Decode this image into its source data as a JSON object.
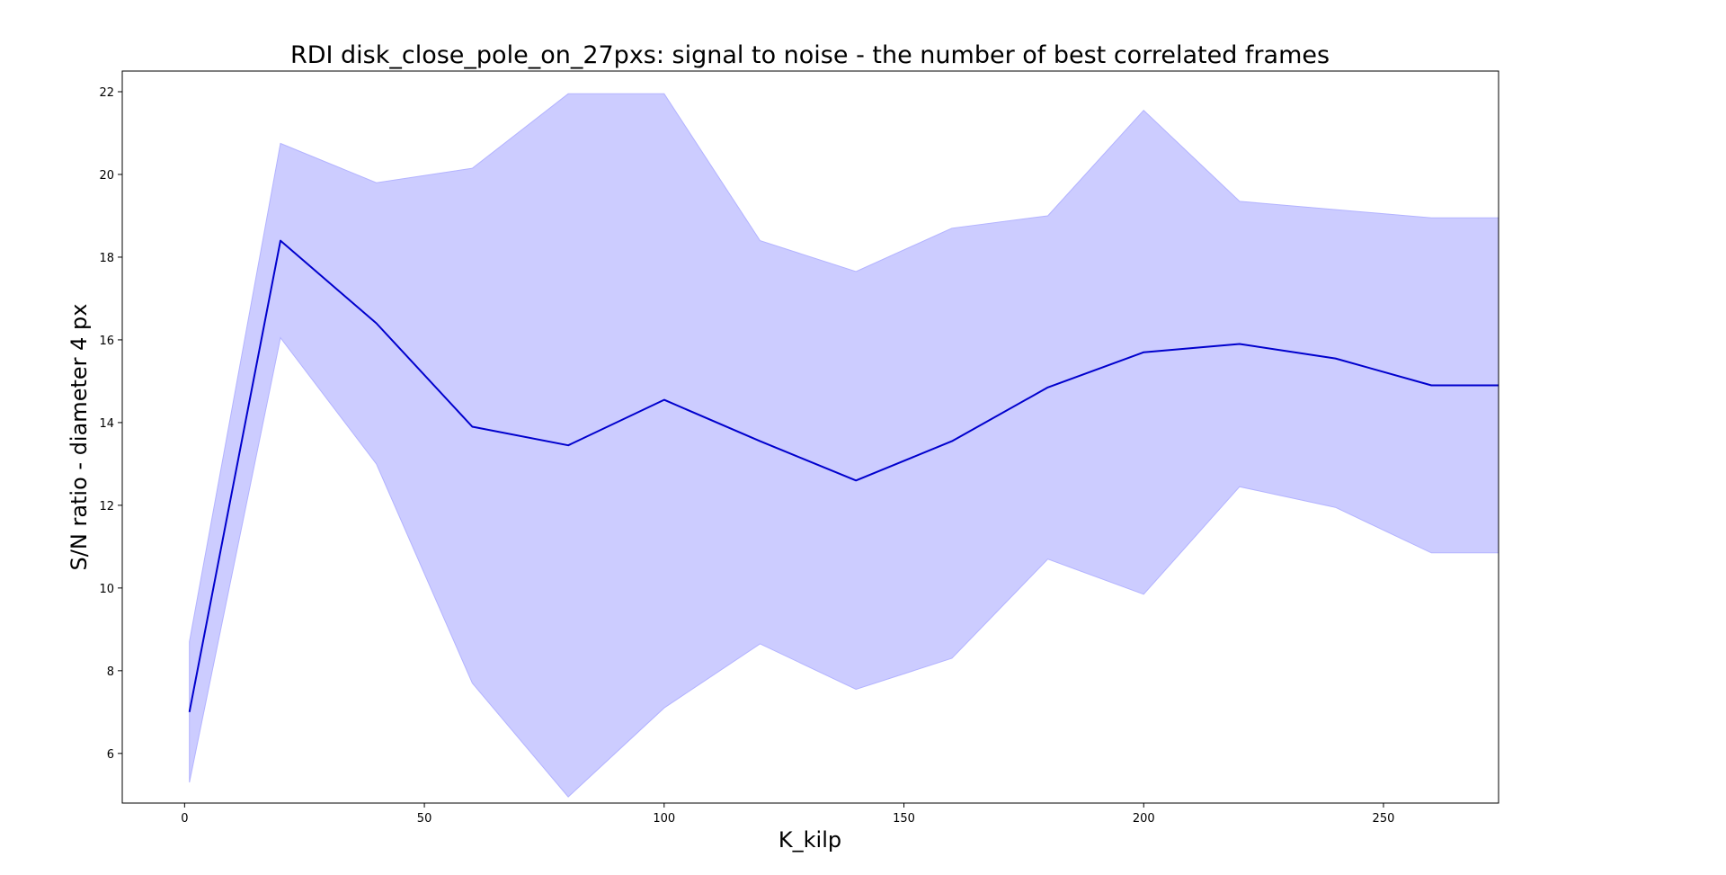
{
  "chart_data": {
    "type": "line",
    "title": "RDI disk_close_pole_on_27pxs: signal to noise - the number of best correlated frames",
    "xlabel": "K_kilp",
    "ylabel": "S/N ratio - diameter 4 px",
    "xlim": [
      -13,
      274
    ],
    "ylim": [
      4.8,
      22.5
    ],
    "xticks": [
      0,
      50,
      100,
      150,
      200,
      250
    ],
    "yticks": [
      6,
      8,
      10,
      12,
      14,
      16,
      18,
      20,
      22
    ],
    "grid": false,
    "legend": "none",
    "series": [
      {
        "x": [
          1,
          20,
          40,
          60,
          80,
          100,
          120,
          140,
          160,
          180,
          200,
          220,
          240,
          260,
          280
        ],
        "values": [
          7.0,
          18.4,
          16.4,
          13.9,
          13.45,
          14.55,
          13.55,
          12.6,
          13.55,
          14.85,
          15.7,
          15.9,
          15.55,
          14.9,
          14.9
        ],
        "color": "#0000cd"
      }
    ],
    "band": {
      "x": [
        1,
        20,
        40,
        60,
        80,
        100,
        120,
        140,
        160,
        180,
        200,
        220,
        240,
        260,
        280
      ],
      "lower": [
        5.3,
        16.05,
        13.0,
        7.7,
        4.95,
        7.1,
        8.65,
        7.55,
        8.3,
        10.7,
        9.85,
        12.45,
        11.95,
        10.85,
        10.85
      ],
      "upper": [
        8.7,
        20.75,
        19.8,
        20.15,
        21.95,
        21.95,
        18.4,
        17.65,
        18.7,
        19.0,
        21.55,
        19.35,
        19.15,
        18.95,
        18.95
      ],
      "color": "#ccccff"
    }
  }
}
